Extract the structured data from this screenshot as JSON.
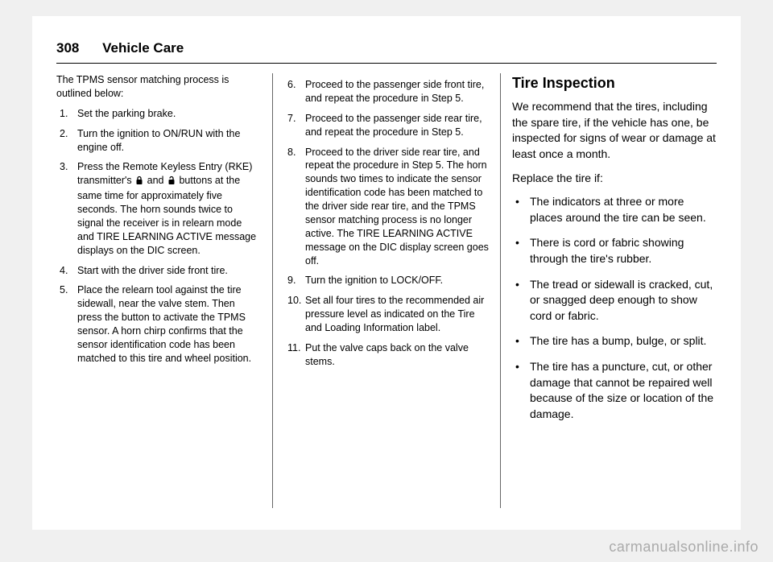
{
  "header": {
    "page_number": "308",
    "section": "Vehicle Care"
  },
  "col1": {
    "intro": "The TPMS sensor matching process is outlined below:",
    "steps": [
      "Set the parking brake.",
      "Turn the ignition to ON/RUN with the engine off.",
      "Press the Remote Keyless Entry (RKE) transmitter's {LOCK} and {UNLOCK} buttons at the same time for approximately five seconds. The horn sounds twice to signal the receiver is in relearn mode and TIRE LEARNING ACTIVE message displays on the DIC screen.",
      "Start with the driver side front tire.",
      "Place the relearn tool against the tire sidewall, near the valve stem. Then press the button to activate the TPMS sensor. A horn chirp confirms that the sensor identification code has been matched to this tire and wheel position."
    ]
  },
  "col2": {
    "start": 5,
    "steps": [
      "Proceed to the passenger side front tire, and repeat the procedure in Step 5.",
      "Proceed to the passenger side rear tire, and repeat the procedure in Step 5.",
      "Proceed to the driver side rear tire, and repeat the procedure in Step 5. The horn sounds two times to indicate the sensor identification code has been matched to the driver side rear tire, and the TPMS sensor matching process is no longer active. The TIRE LEARNING ACTIVE message on the DIC display screen goes off.",
      "Turn the ignition to LOCK/OFF.",
      "Set all four tires to the recommended air pressure level as indicated on the Tire and Loading Information label.",
      "Put the valve caps back on the valve stems."
    ]
  },
  "col3": {
    "heading": "Tire Inspection",
    "intro": "We recommend that the tires, including the spare tire, if the vehicle has one, be inspected for signs of wear or damage at least once a month.",
    "sub": "Replace the tire if:",
    "bullets": [
      "The indicators at three or more places around the tire can be seen.",
      "There is cord or fabric showing through the tire's rubber.",
      "The tread or sidewall is cracked, cut, or snagged deep enough to show cord or fabric.",
      "The tire has a bump, bulge, or split.",
      "The tire has a puncture, cut, or other damage that cannot be repaired well because of the size or location of the damage."
    ]
  },
  "watermark": "carmanualsonline.info",
  "icons": {
    "lock_svg": "<svg width='12' height='12' viewBox='0 0 12 12'><rect x='2.5' y='5' width='7' height='6' rx='1' fill='#000'/><path d='M4 5 V3.5 a2 2 0 0 1 4 0 V5' fill='none' stroke='#000' stroke-width='1.3'/></svg>",
    "unlock_svg": "<svg width='12' height='12' viewBox='0 0 12 12'><rect x='2.5' y='5' width='7' height='6' rx='1' fill='#000'/><path d='M8 5 V3.5 a2 2 0 0 0 -4 0' fill='none' stroke='#000' stroke-width='1.3'/></svg>"
  },
  "colors": {
    "text": "#000000",
    "rule": "#666666",
    "watermark": "#aaaaaa",
    "bg": "#ffffff"
  }
}
